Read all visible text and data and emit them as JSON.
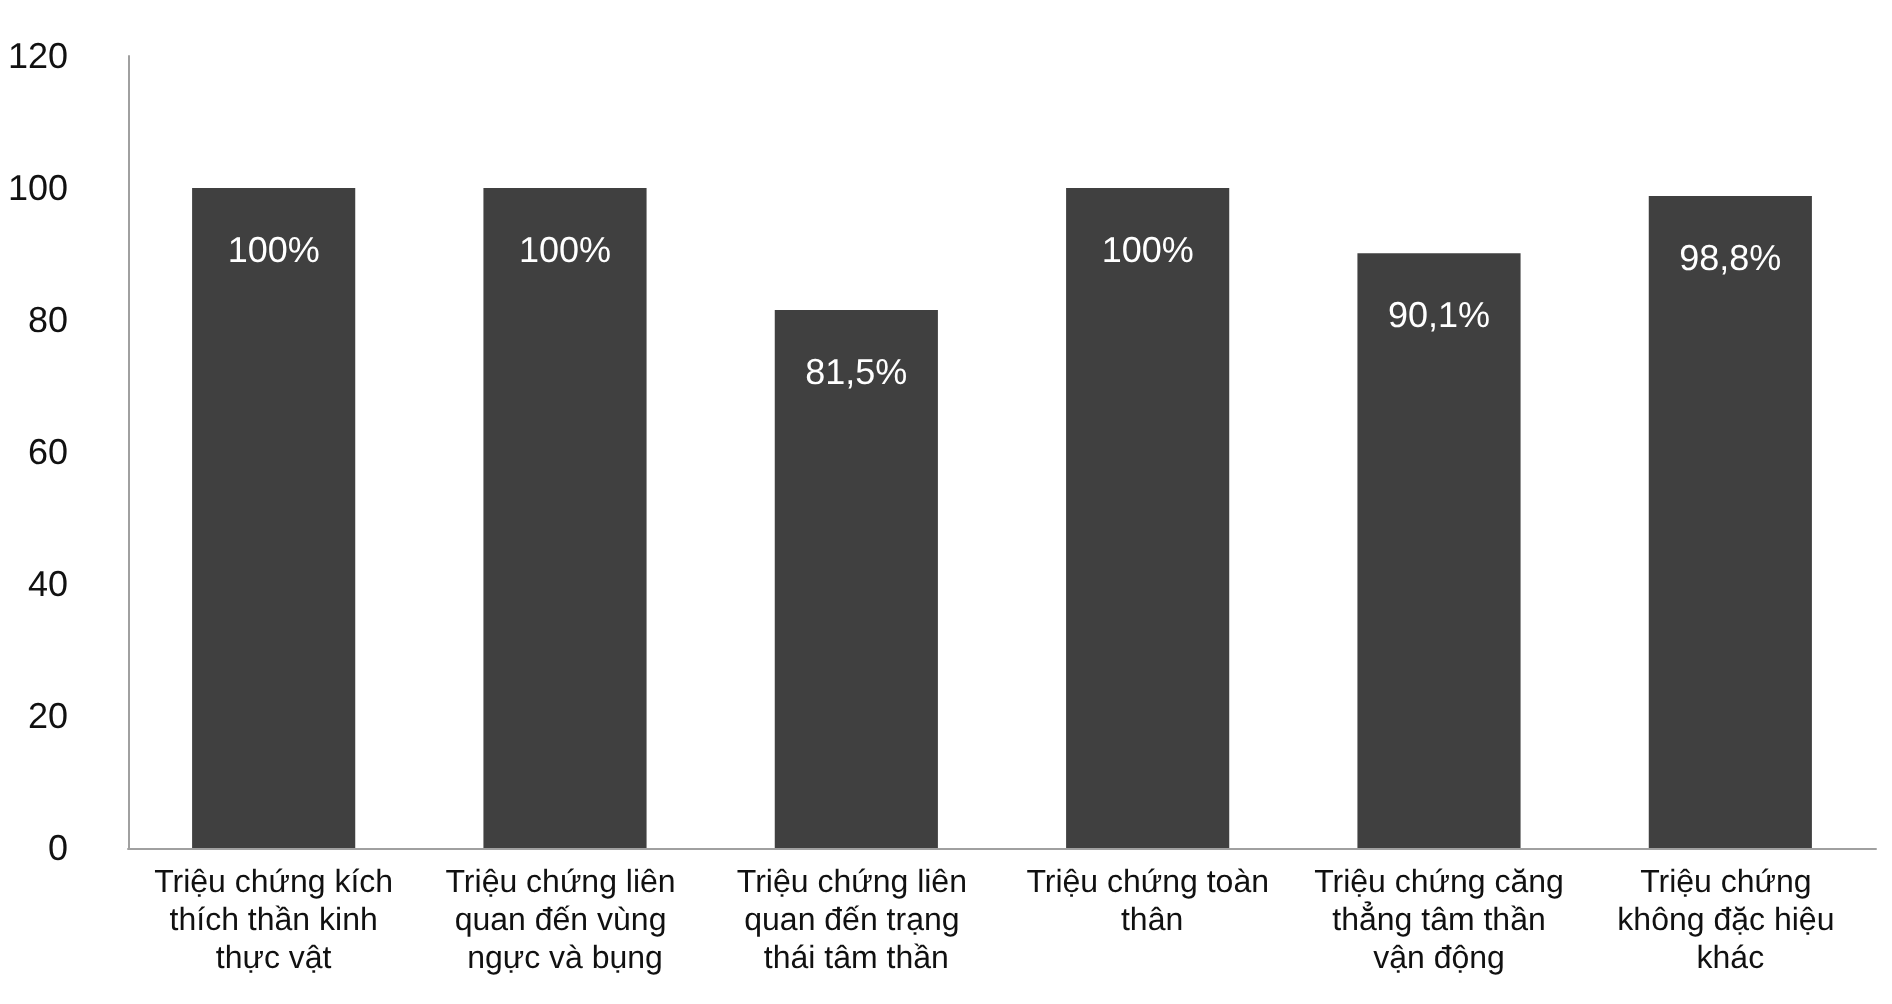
{
  "chart_data": {
    "type": "bar",
    "categories": [
      "Triệu chứng kích thích thần kinh thực vật",
      "Triệu chứng liên quan đến vùng ngực và bụng",
      "Triệu chứng liên quan đến trạng thái tâm thần",
      "Triệu chứng toàn thân",
      "Triệu chứng căng thẳng tâm thần vận động",
      "Triệu chứng không đặc hiệu khác"
    ],
    "values": [
      100,
      100,
      81.5,
      100,
      90.1,
      98.8
    ],
    "value_labels": [
      "100%",
      "100%",
      "81,5%",
      "100%",
      "90,1%",
      "98,8%"
    ],
    "color": "#404040",
    "ylim": [
      0,
      120
    ],
    "yticks": [
      0,
      20,
      40,
      60,
      80,
      100,
      120
    ],
    "grid": false
  }
}
